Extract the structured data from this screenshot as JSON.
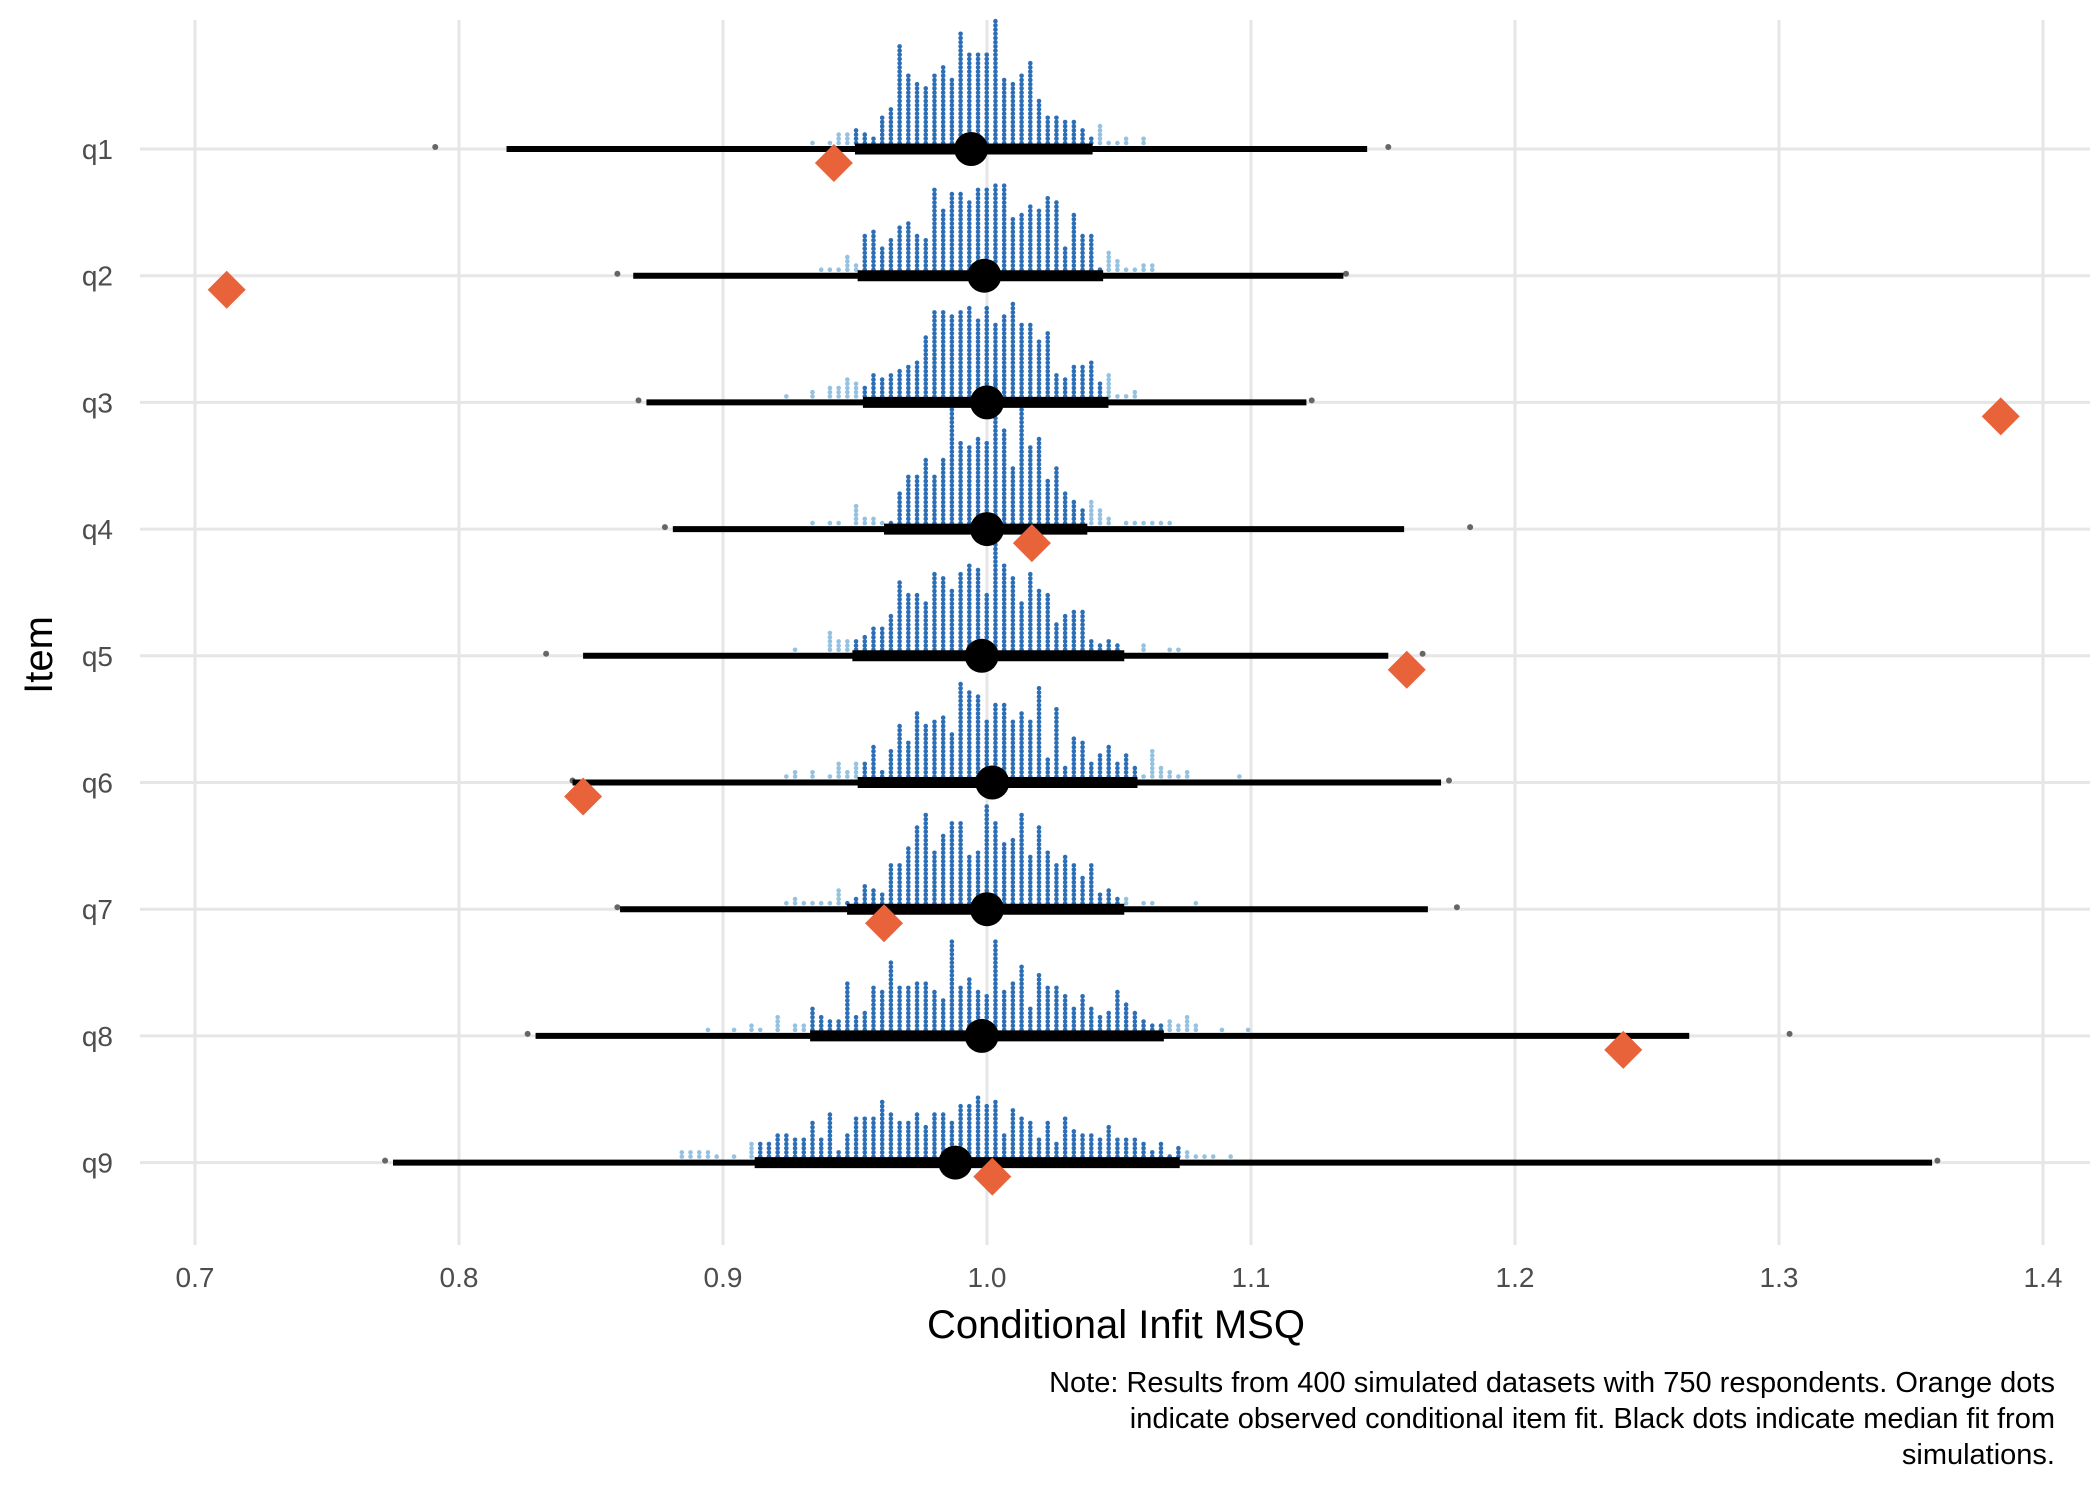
{
  "chart_data": {
    "type": "scatter",
    "subtype": "dotplot-interval",
    "xlabel": "Conditional Infit MSQ",
    "ylabel": "Item",
    "xlim": [
      0.68,
      1.41
    ],
    "x_ticks": [
      "0.7",
      "0.8",
      "0.9",
      "1.0",
      "1.1",
      "1.2",
      "1.3",
      "1.4"
    ],
    "x_tick_values": [
      0.7,
      0.8,
      0.9,
      1.0,
      1.1,
      1.2,
      1.3,
      1.4
    ],
    "grid": true,
    "legend": "none",
    "colors": {
      "observed": "#E8623A",
      "median": "#000000",
      "dots_inner": "#2C6FB7",
      "dots_outer": "#94C2E0",
      "outlier": "#666666",
      "grid": "#E6E6E6"
    },
    "items": [
      {
        "label": "q1",
        "observed": 0.942,
        "median": 0.994,
        "inner": [
          0.95,
          1.04
        ],
        "outer": [
          0.818,
          1.144
        ],
        "extremes": [
          0.791,
          1.152
        ],
        "spread": 0.042
      },
      {
        "label": "q2",
        "observed": 0.712,
        "median": 0.999,
        "inner": [
          0.951,
          1.044
        ],
        "outer": [
          0.866,
          1.135
        ],
        "extremes": [
          0.86,
          1.136
        ],
        "spread": 0.045
      },
      {
        "label": "q3",
        "observed": 1.384,
        "median": 1.0,
        "inner": [
          0.953,
          1.046
        ],
        "outer": [
          0.871,
          1.121
        ],
        "extremes": [
          0.868,
          1.123
        ],
        "spread": 0.044
      },
      {
        "label": "q4",
        "observed": 1.017,
        "median": 1.0,
        "inner": [
          0.961,
          1.038
        ],
        "outer": [
          0.881,
          1.158
        ],
        "extremes": [
          0.878,
          1.183
        ],
        "spread": 0.04
      },
      {
        "label": "q5",
        "observed": 1.159,
        "median": 0.998,
        "inner": [
          0.949,
          1.052
        ],
        "outer": [
          0.847,
          1.152
        ],
        "extremes": [
          0.833,
          1.165
        ],
        "spread": 0.05
      },
      {
        "label": "q6",
        "observed": 0.847,
        "median": 1.002,
        "inner": [
          0.951,
          1.057
        ],
        "outer": [
          0.843,
          1.172
        ],
        "extremes": [
          0.843,
          1.175
        ],
        "spread": 0.052
      },
      {
        "label": "q7",
        "observed": 0.961,
        "median": 1.0,
        "inner": [
          0.947,
          1.052
        ],
        "outer": [
          0.861,
          1.167
        ],
        "extremes": [
          0.86,
          1.178
        ],
        "spread": 0.05
      },
      {
        "label": "q8",
        "observed": 1.241,
        "median": 0.998,
        "inner": [
          0.933,
          1.067
        ],
        "outer": [
          0.829,
          1.266
        ],
        "extremes": [
          0.826,
          1.304
        ],
        "spread": 0.066
      },
      {
        "label": "q9",
        "observed": 1.002,
        "median": 0.988,
        "inner": [
          0.912,
          1.073
        ],
        "outer": [
          0.775,
          1.358
        ],
        "extremes": [
          0.772,
          1.36
        ],
        "spread": 0.08
      }
    ],
    "n_datasets": 400,
    "n_respondents": 750
  },
  "note": {
    "line1": "Note: Results from 400 simulated datasets with 750 respondents. Orange dots",
    "line2": "indicate observed conditional item fit. Black dots indicate median fit from",
    "line3": "simulations."
  }
}
